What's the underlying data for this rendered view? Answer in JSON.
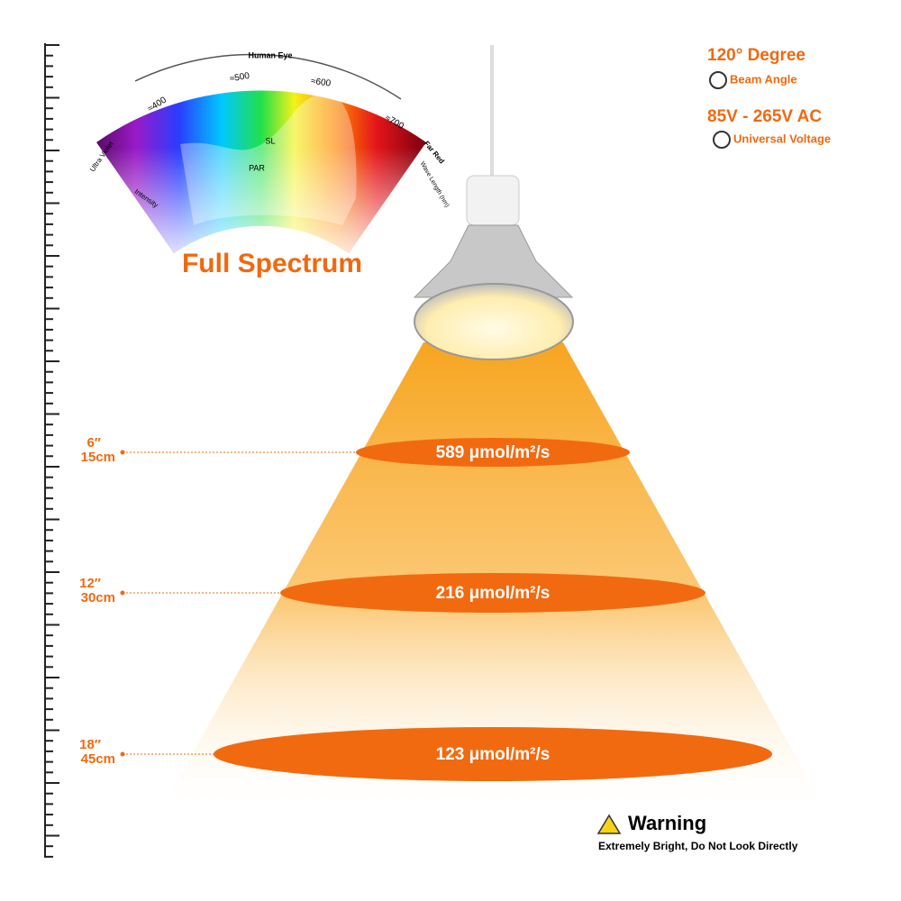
{
  "spectrum": {
    "top_label": "Human Eye",
    "wavelengths": [
      "≈400",
      "≈500",
      "≈600",
      "≈700"
    ],
    "left_label": "Ultra Violet",
    "right_label": "Far Red",
    "axis_label": "Wave Length (nm)",
    "intensity_label": "Intensity",
    "curves": [
      "SL",
      "PAR"
    ],
    "title": "Full Spectrum"
  },
  "specs": [
    {
      "title": "120° Degree",
      "subtitle": "Beam Angle"
    },
    {
      "title": "85V - 265V AC",
      "subtitle": "Universal Voltage"
    }
  ],
  "distances": [
    {
      "inches": "6″",
      "cm": "15cm",
      "ppfd": "589 μmol/m²/s"
    },
    {
      "inches": "12″",
      "cm": "30cm",
      "ppfd": "216 μmol/m²/s"
    },
    {
      "inches": "18″",
      "cm": "45cm",
      "ppfd": "123 μmol/m²/s"
    }
  ],
  "warning": {
    "title": "Warning",
    "text": "Extremely Bright, Do Not Look Directly"
  }
}
